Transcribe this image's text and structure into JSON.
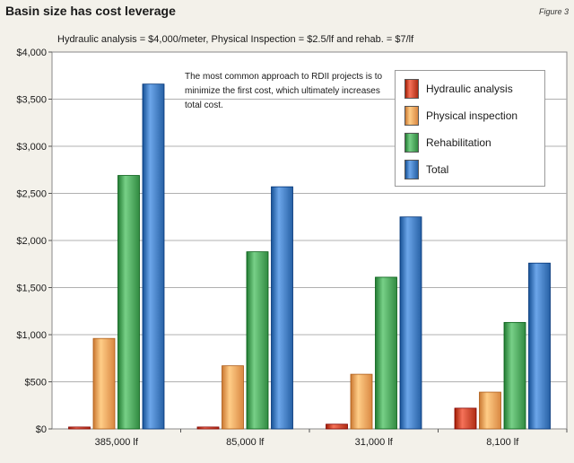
{
  "header": {
    "title": "Basin size has cost leverage",
    "figure_label": "Figure 3"
  },
  "chart_data": {
    "type": "bar",
    "title": "Basin size has cost leverage",
    "subtitle": "Hydraulic analysis = $4,000/meter, Physical Inspection = $2.5/lf and rehab. = $7/lf",
    "annotation": "The most common approach to RDII projects is to minimize the first cost, which ultimately increases total cost.",
    "categories": [
      "385,000 lf",
      "85,000 lf",
      "31,000 lf",
      "8,100 lf"
    ],
    "series": [
      {
        "name": "Hydraulic analysis",
        "color": "#c8452c",
        "values": [
          20,
          20,
          50,
          220
        ]
      },
      {
        "name": "Physical inspection",
        "color": "#f2a05a",
        "values": [
          960,
          670,
          580,
          390
        ]
      },
      {
        "name": "Rehabilitation",
        "color": "#4aa35a",
        "values": [
          2690,
          1880,
          1610,
          1130
        ]
      },
      {
        "name": "Total",
        "color": "#3f79bd",
        "values": [
          3660,
          2570,
          2250,
          1760
        ]
      }
    ],
    "ylim": [
      0,
      4000
    ],
    "yticks": [
      {
        "value": 0,
        "label": "$0"
      },
      {
        "value": 500,
        "label": "$500"
      },
      {
        "value": 1000,
        "label": "$1,000"
      },
      {
        "value": 1500,
        "label": "$1,500"
      },
      {
        "value": 2000,
        "label": "$2,000"
      },
      {
        "value": 2500,
        "label": "$2,500"
      },
      {
        "value": 3000,
        "label": "$3,000"
      },
      {
        "value": 3500,
        "label": "$3,500"
      },
      {
        "value": 4000,
        "label": "$4,000"
      }
    ],
    "grid": true,
    "legend_position": "top-right"
  }
}
